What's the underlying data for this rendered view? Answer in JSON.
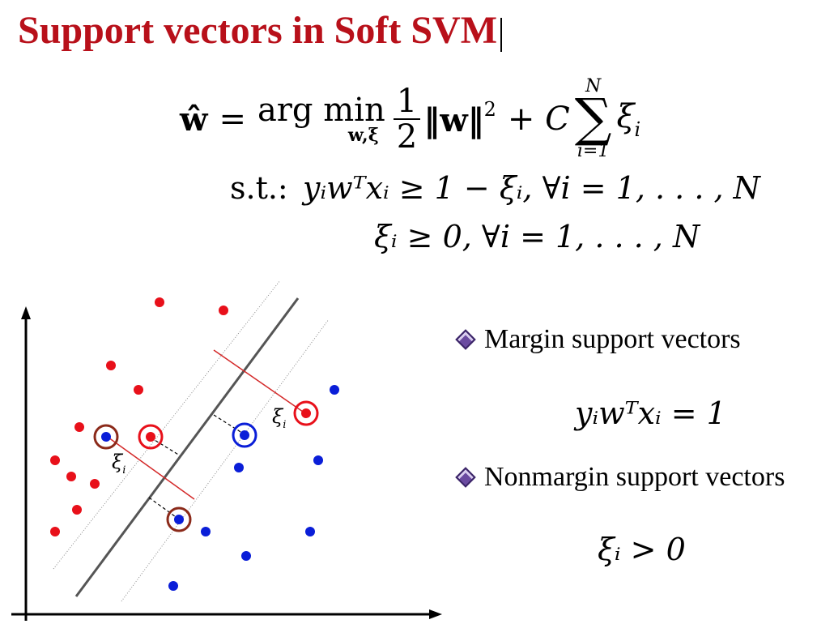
{
  "title": "Support vectors in Soft SVM",
  "equations": {
    "objective": {
      "lhs": "ŵ",
      "eq": "=",
      "argmin": "arg min",
      "argmin_sub": "w,ξ",
      "half_num": "1",
      "half_den": "2",
      "norm": "‖w‖",
      "norm_sq": "2",
      "plus_c": "+ C",
      "sum_top": "N",
      "sum_sym": "∑",
      "sum_bot": "i=1",
      "xi": "ξ",
      "xi_sub": "i"
    },
    "st_label": "s.t.:",
    "constraint1": "yᵢwᵀxᵢ ≥ 1 − ξᵢ,  ∀i = 1, . . . , N",
    "constraint2": "ξᵢ ≥ 0,  ∀i = 1, . . . , N"
  },
  "bullets": [
    {
      "label": "Margin support vectors",
      "formula": "yᵢwᵀxᵢ = 1"
    },
    {
      "label": "Nonmargin support vectors",
      "formula": "ξᵢ > 0"
    }
  ],
  "diagram": {
    "xi_label_1": "ξ",
    "xi_label_1_sub": "i",
    "xi_label_2": "ξ",
    "xi_label_2_sub": "i",
    "colors": {
      "positive": "#e8101a",
      "negative": "#0a1ed8",
      "circle_brown": "#8b2a1a",
      "perp_line": "#d42a2a",
      "boundary": "#555555"
    }
  }
}
